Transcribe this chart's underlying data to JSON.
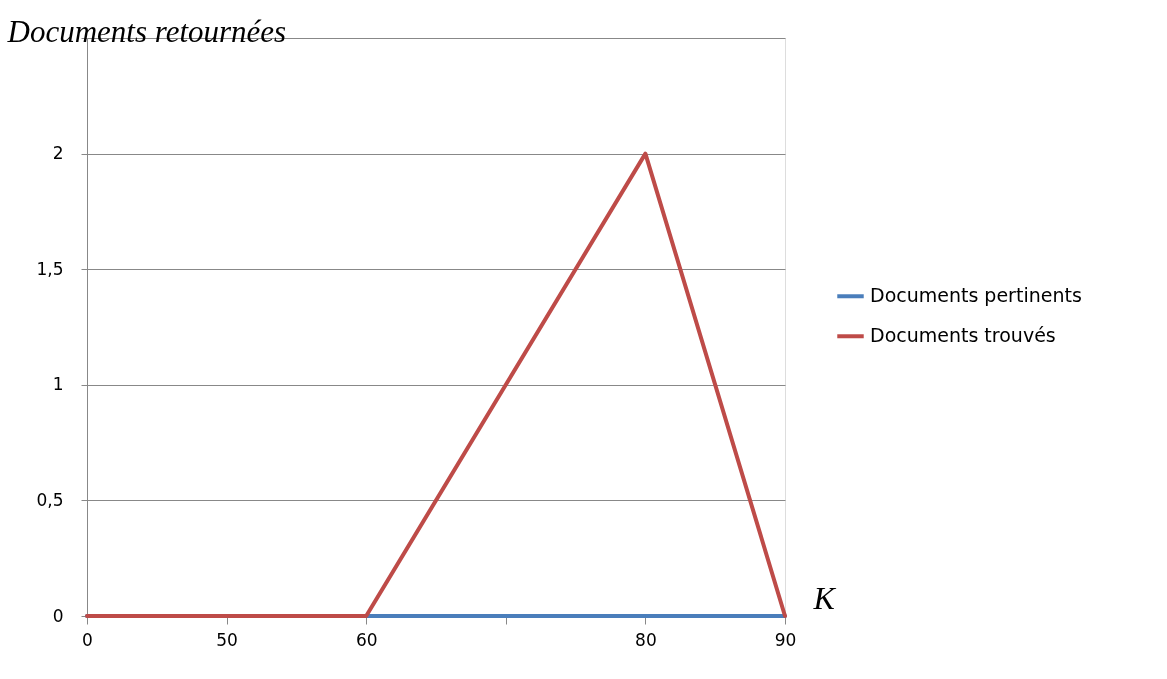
{
  "chart_data": {
    "type": "line",
    "ylabel": "Documents retournées",
    "xlabel": "K",
    "categories": [
      "0",
      "50",
      "60",
      null,
      "80",
      "90"
    ],
    "series": [
      {
        "name": "Documents pertinents",
        "color": "#4a7ebb",
        "values": [
          0,
          0,
          0,
          0,
          0,
          0
        ]
      },
      {
        "name": "Documents trouvés",
        "color": "#be4b48",
        "values": [
          0,
          0,
          0,
          1,
          2,
          0
        ]
      }
    ],
    "ylim": [
      0,
      2.5
    ],
    "yticks": [
      0,
      {
        "value": 0.5,
        "label": "0,5"
      },
      1,
      {
        "value": 1.5,
        "label": "1,5"
      },
      2,
      {
        "value": 2.5,
        "label": null
      }
    ],
    "grid": "y",
    "legend": "right",
    "line_style": "solid"
  }
}
